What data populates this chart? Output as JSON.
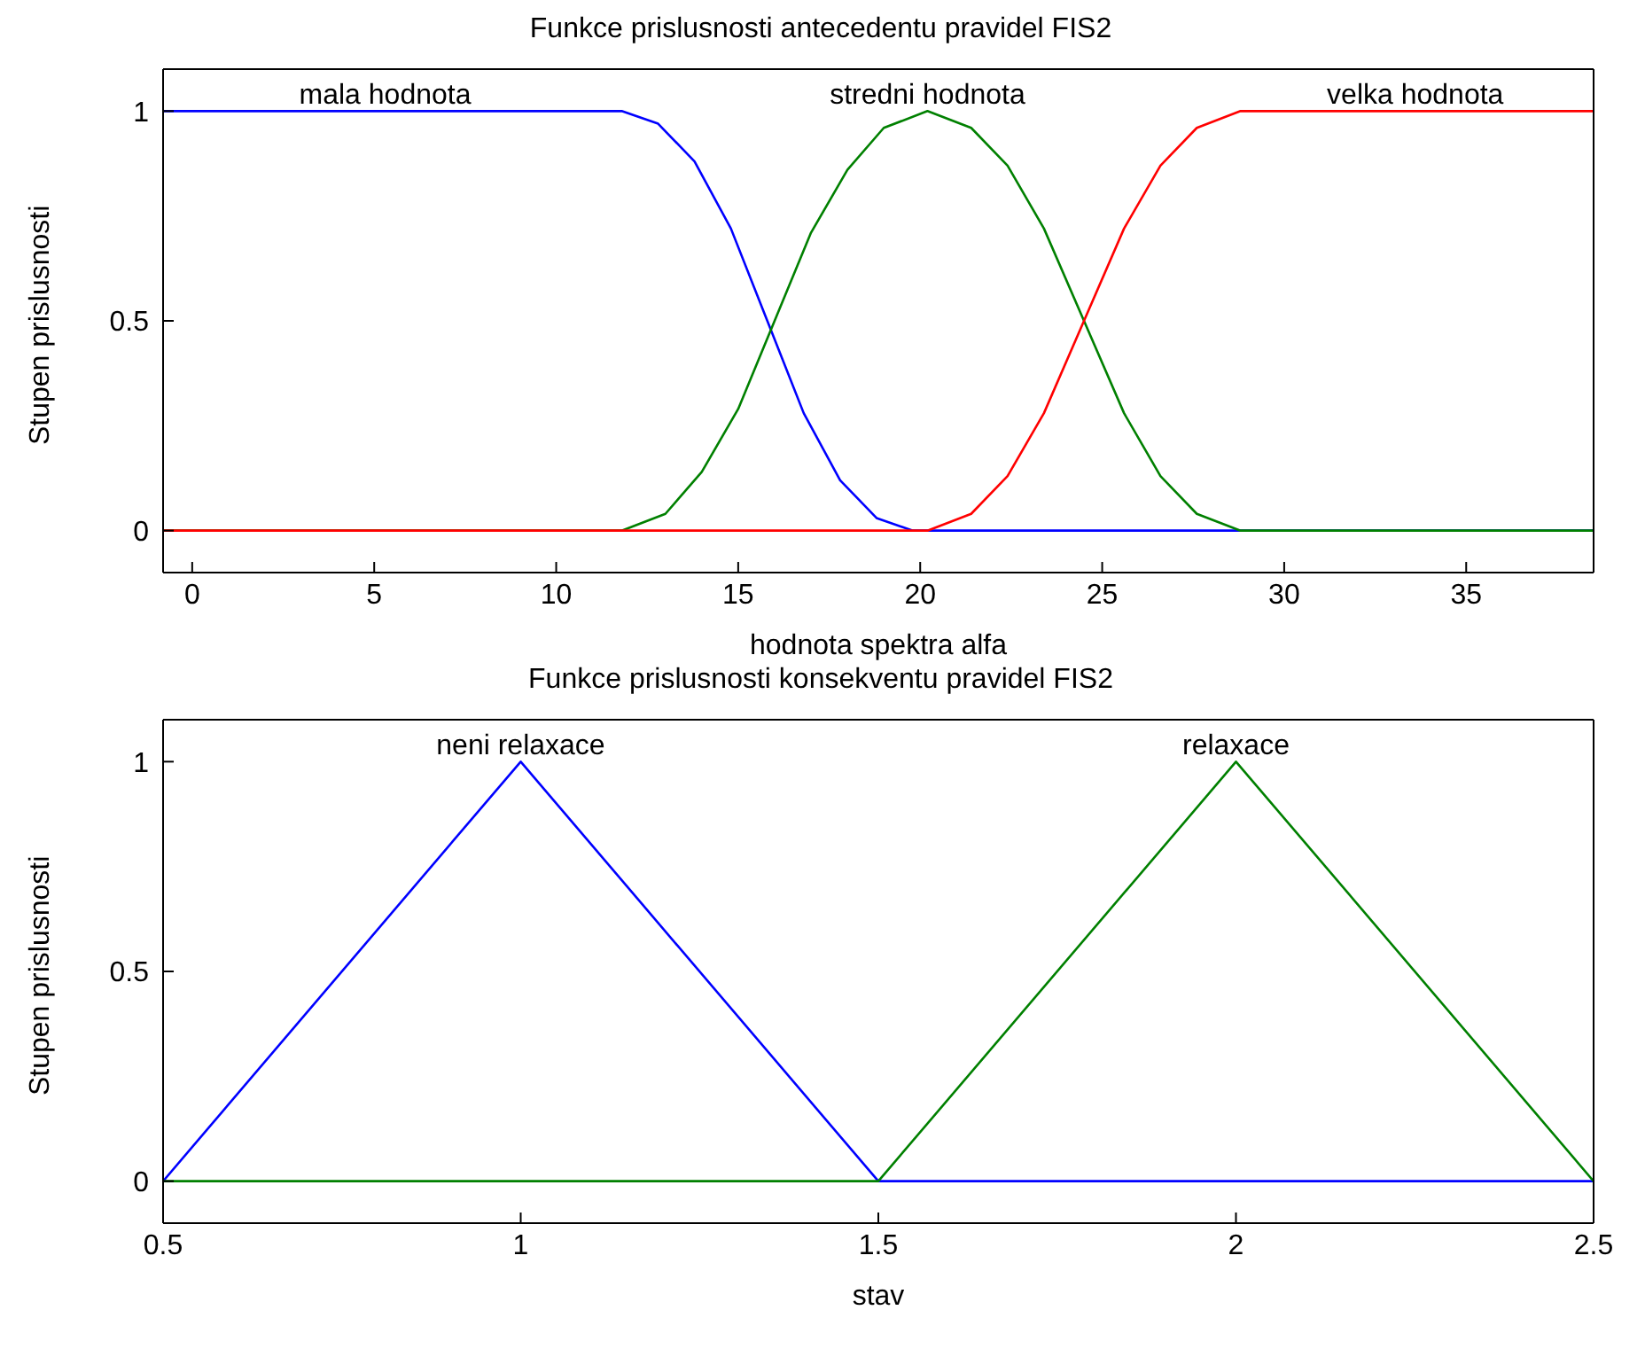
{
  "chart_data": [
    {
      "type": "line",
      "title": "Funkce prislusnosti antecedentu pravidel FIS2",
      "xlabel": "hodnota spektra alfa",
      "ylabel": "Stupen prislusnosti",
      "xlim": [
        -0.8,
        38.5
      ],
      "xticks": [
        0,
        5,
        10,
        15,
        20,
        25,
        30,
        35
      ],
      "ylim": [
        -0.1,
        1.1
      ],
      "yticks": [
        0,
        0.5,
        1
      ],
      "grid": false,
      "series": [
        {
          "color": "#0000ff",
          "x": [
            -0.8,
            11.8,
            12.8,
            13.8,
            14.8,
            15.8,
            16.8,
            17.8,
            18.8,
            19.8,
            38.5
          ],
          "values": [
            1,
            1,
            0.97,
            0.88,
            0.72,
            0.5,
            0.28,
            0.12,
            0.03,
            0,
            0
          ]
        },
        {
          "color": "#008000",
          "x": [
            -0.8,
            11.8,
            13,
            14,
            15,
            16,
            17,
            18,
            19,
            20.2,
            21.4,
            22.4,
            23.4,
            24.5,
            25.6,
            26.6,
            27.6,
            28.8,
            38.5
          ],
          "values": [
            0,
            0,
            0.04,
            0.14,
            0.29,
            0.5,
            0.71,
            0.86,
            0.96,
            1,
            0.96,
            0.87,
            0.72,
            0.5,
            0.28,
            0.13,
            0.04,
            0,
            0
          ]
        },
        {
          "color": "#ff0000",
          "x": [
            -0.8,
            20.2,
            21.4,
            22.4,
            23.4,
            24.5,
            25.6,
            26.6,
            27.6,
            28.8,
            38.5
          ],
          "values": [
            0,
            0,
            0.04,
            0.13,
            0.28,
            0.5,
            0.72,
            0.87,
            0.96,
            1,
            1
          ]
        }
      ],
      "annotations": [
        {
          "text": "mala hodnota",
          "x": 5.3,
          "y": 1
        },
        {
          "text": "stredni hodnota",
          "x": 20.2,
          "y": 1
        },
        {
          "text": "velka hodnota",
          "x": 33.6,
          "y": 1
        }
      ]
    },
    {
      "type": "line",
      "title": "Funkce prislusnosti konsekventu pravidel FIS2",
      "xlabel": "stav",
      "ylabel": "Stupen prislusnosti",
      "xlim": [
        0.5,
        2.5
      ],
      "xticks": [
        0.5,
        1,
        1.5,
        2,
        2.5
      ],
      "ylim": [
        -0.1,
        1.1
      ],
      "yticks": [
        0,
        0.5,
        1
      ],
      "grid": false,
      "series": [
        {
          "color": "#0000ff",
          "x": [
            0.5,
            1,
            1.5,
            2.5
          ],
          "values": [
            0,
            1,
            0,
            0
          ]
        },
        {
          "color": "#008000",
          "x": [
            0.5,
            1.5,
            2,
            2.5
          ],
          "values": [
            0,
            0,
            1,
            0
          ]
        }
      ],
      "annotations": [
        {
          "text": "neni relaxace",
          "x": 1,
          "y": 1
        },
        {
          "text": "relaxace",
          "x": 2,
          "y": 1
        }
      ]
    }
  ]
}
